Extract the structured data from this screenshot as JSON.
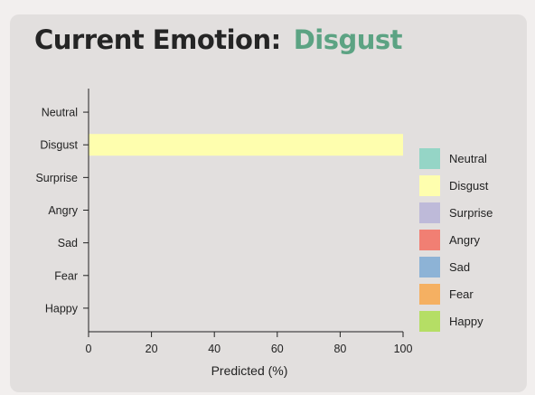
{
  "header": {
    "prefix": "Current Emotion:",
    "emotion": "Disgust",
    "emotion_color": "#5ca383"
  },
  "chart_data": {
    "type": "bar",
    "orientation": "horizontal",
    "categories": [
      "Neutral",
      "Disgust",
      "Surprise",
      "Angry",
      "Sad",
      "Fear",
      "Happy"
    ],
    "values": [
      0,
      100,
      0,
      0,
      0,
      0,
      0
    ],
    "colors": [
      "#95d5c6",
      "#fefeae",
      "#bebad9",
      "#f17f73",
      "#8db3d6",
      "#f5b062",
      "#b5de65"
    ],
    "xlabel": "Predicted (%)",
    "ylabel": "",
    "xlim": [
      0,
      100
    ],
    "xticks": [
      0,
      20,
      40,
      60,
      80,
      100
    ],
    "grid": false,
    "legend_position": "right",
    "legend": [
      "Neutral",
      "Disgust",
      "Surprise",
      "Angry",
      "Sad",
      "Fear",
      "Happy"
    ]
  }
}
